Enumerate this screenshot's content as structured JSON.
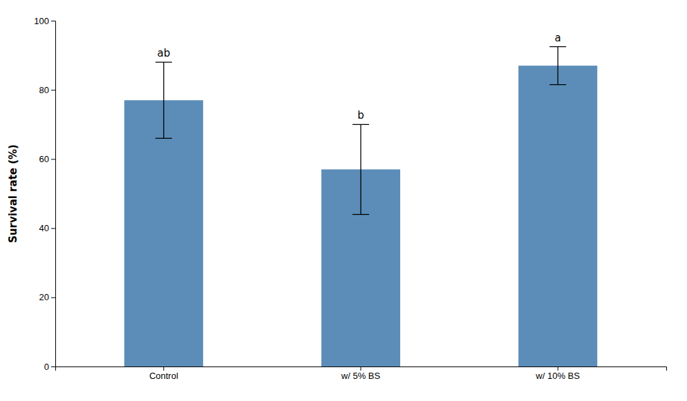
{
  "chart_data": {
    "type": "bar",
    "categories": [
      "Control",
      "w/ 5% BS",
      "w/ 10% BS"
    ],
    "values": [
      77.0,
      57.0,
      87.0
    ],
    "errors": [
      11.0,
      13.0,
      5.5
    ],
    "annotations": [
      "ab",
      "b",
      "a"
    ],
    "color": "#5B8DB8",
    "ylabel": "Survival rate (%)",
    "ylim": [
      0,
      100
    ],
    "yticks": [
      0,
      20,
      40,
      60,
      80,
      100
    ],
    "grid": false
  }
}
